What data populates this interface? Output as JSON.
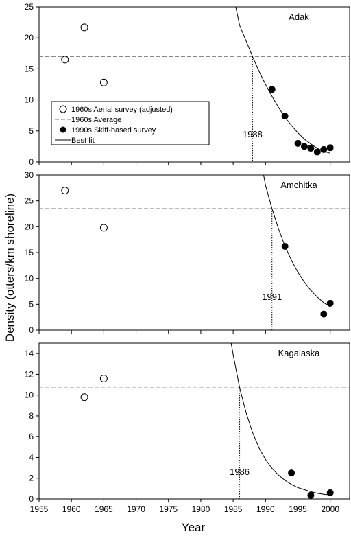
{
  "chart_data": [
    {
      "type": "scatter",
      "panel": "Adak",
      "xlim": [
        1955,
        2003
      ],
      "ylim": [
        0,
        25
      ],
      "yticks": [
        0,
        5,
        10,
        15,
        20,
        25
      ],
      "average_1960s": 17.0,
      "annotation": {
        "x": 1988,
        "label": "1988"
      },
      "series": [
        {
          "name": "1960s Aerial survey (adjusted)",
          "marker": "open-circle",
          "x": [
            1959,
            1962,
            1965
          ],
          "y": [
            16.5,
            21.7,
            12.8
          ]
        },
        {
          "name": "1990s Skiff-based survey",
          "marker": "filled-circle",
          "x": [
            1991,
            1993,
            1995,
            1996,
            1997,
            1998,
            1999,
            2000
          ],
          "y": [
            11.7,
            7.4,
            3.0,
            2.5,
            2.2,
            1.6,
            2.0,
            2.3
          ]
        }
      ],
      "fit": {
        "x": [
          1985.4,
          1986,
          1987,
          1988,
          1989,
          1990,
          1991,
          1992,
          1993,
          1994,
          1995,
          1996,
          1997,
          1998,
          1999,
          2000
        ],
        "y": [
          25,
          22.0,
          19.5,
          17.0,
          14.6,
          12.5,
          10.6,
          8.8,
          7.2,
          5.9,
          4.7,
          3.7,
          2.9,
          2.2,
          1.7,
          1.4
        ]
      }
    },
    {
      "type": "scatter",
      "panel": "Amchitka",
      "xlim": [
        1955,
        2003
      ],
      "ylim": [
        0,
        30
      ],
      "yticks": [
        0,
        5,
        10,
        15,
        20,
        25,
        30
      ],
      "average_1960s": 23.5,
      "annotation": {
        "x": 1991,
        "label": "1991"
      },
      "series": [
        {
          "name": "1960s Aerial survey (adjusted)",
          "marker": "open-circle",
          "x": [
            1959,
            1965
          ],
          "y": [
            27.0,
            19.8
          ]
        },
        {
          "name": "1990s Skiff-based survey",
          "marker": "filled-circle",
          "x": [
            1993,
            1999,
            2000
          ],
          "y": [
            16.2,
            3.1,
            5.2
          ]
        }
      ],
      "fit": {
        "x": [
          1989.7,
          1990,
          1991,
          1992,
          1993,
          1994,
          1995,
          1996,
          1997,
          1998,
          1999,
          2000
        ],
        "y": [
          30,
          28.0,
          23.5,
          19.6,
          16.3,
          13.5,
          11.2,
          9.3,
          7.7,
          6.4,
          5.3,
          4.5
        ]
      }
    },
    {
      "type": "scatter",
      "panel": "Kagalaska",
      "xlim": [
        1955,
        2003
      ],
      "ylim": [
        0,
        15
      ],
      "yticks": [
        0,
        2,
        4,
        6,
        8,
        10,
        12,
        14
      ],
      "average_1960s": 10.7,
      "annotation": {
        "x": 1986,
        "label": "1986"
      },
      "series": [
        {
          "name": "1960s Aerial survey (adjusted)",
          "marker": "open-circle",
          "x": [
            1962,
            1965
          ],
          "y": [
            9.8,
            11.6
          ]
        },
        {
          "name": "1990s Skiff-based survey",
          "marker": "filled-circle",
          "x": [
            1994,
            1997,
            2000
          ],
          "y": [
            2.5,
            0.35,
            0.6
          ]
        }
      ],
      "fit": {
        "x": [
          1984.7,
          1985,
          1986,
          1987,
          1988,
          1989,
          1990,
          1991,
          1992,
          1993,
          1994,
          1995,
          1996,
          1997,
          1998,
          1999,
          2000
        ],
        "y": [
          15,
          13.9,
          10.7,
          8.3,
          6.4,
          4.9,
          3.8,
          2.95,
          2.3,
          1.8,
          1.4,
          1.1,
          0.9,
          0.7,
          0.55,
          0.45,
          0.38
        ]
      }
    }
  ],
  "xticks": [
    1955,
    1960,
    1965,
    1970,
    1975,
    1980,
    1985,
    1990,
    1995,
    2000
  ],
  "xlabel": "Year",
  "ylabel": "Density (otters/km shoreline)",
  "legend": {
    "placement": "inside top panel, lower-left",
    "entries": [
      {
        "label": "1960s Aerial survey (adjusted)",
        "symbol": "open-circle"
      },
      {
        "label": "1960s Average",
        "symbol": "dashed-line"
      },
      {
        "label": "1990s Skiff-based survey",
        "symbol": "filled-circle"
      },
      {
        "label": "Best fit",
        "symbol": "solid-line"
      }
    ]
  }
}
